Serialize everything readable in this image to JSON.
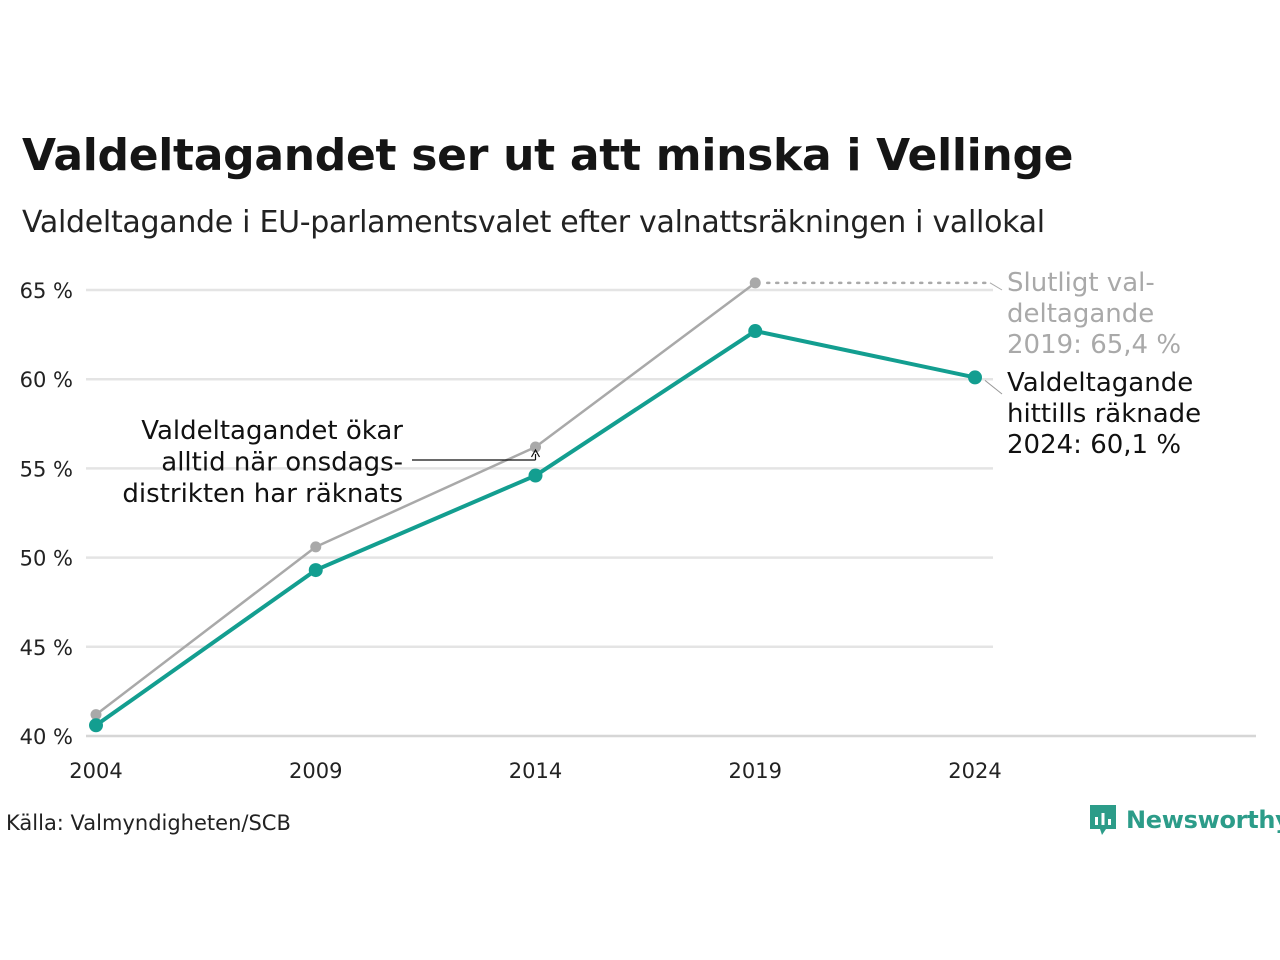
{
  "title": "Valdeltagandet ser ut att minska i Vellinge",
  "subtitle": "Valdeltagande i EU-parlamentsvalet efter valnattsräkningen i vallokal",
  "source": "Källa: Valmyndigheten/SCB",
  "brand": "Newsworthy",
  "colors": {
    "valnatt": "#139e90",
    "slutligt": "#a9a9a9",
    "grid": "#e4e4e4",
    "brand": "#2c9c89"
  },
  "chart_data": {
    "type": "line",
    "x": [
      2004,
      2009,
      2014,
      2019,
      2024
    ],
    "ylim": [
      40,
      65
    ],
    "y_ticks": [
      {
        "value": 40,
        "label": "40 %"
      },
      {
        "value": 45,
        "label": "45 %"
      },
      {
        "value": 50,
        "label": "50 %"
      },
      {
        "value": 55,
        "label": "55 %"
      },
      {
        "value": 60,
        "label": "60 %"
      },
      {
        "value": 65,
        "label": "65 %"
      }
    ],
    "x_ticks": [
      "2004",
      "2009",
      "2014",
      "2019",
      "2024"
    ],
    "grid": true,
    "series": [
      {
        "key": "slutligt",
        "values": [
          41.2,
          50.6,
          56.2,
          65.4,
          null
        ]
      },
      {
        "key": "valnatt",
        "values": [
          40.6,
          49.3,
          54.6,
          62.7,
          60.1
        ]
      }
    ],
    "annotations": {
      "final_2019": [
        "Slutligt val-",
        "deltagande",
        "2019: 65,4 %"
      ],
      "count_2024": [
        "Valdeltagande",
        "hittills räknade",
        "2024: 60,1 %"
      ],
      "increase_note": [
        "Valdeltagandet ökar",
        "alltid när onsdags-",
        "distrikten har räknats"
      ]
    }
  }
}
